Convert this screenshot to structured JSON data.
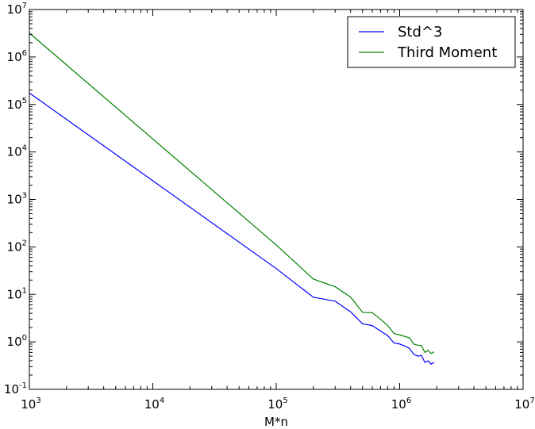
{
  "chart_data": {
    "type": "line",
    "title": "",
    "xlabel": "M*n",
    "ylabel": "",
    "xscale": "log",
    "yscale": "log",
    "xlim": [
      1000,
      10000000
    ],
    "ylim": [
      0.1,
      10000000
    ],
    "grid": false,
    "legend_placement": "top-right",
    "x_ticks": [
      {
        "base": "10",
        "exp": "3",
        "value": 1000
      },
      {
        "base": "10",
        "exp": "4",
        "value": 10000
      },
      {
        "base": "10",
        "exp": "5",
        "value": 100000
      },
      {
        "base": "10",
        "exp": "6",
        "value": 1000000
      },
      {
        "base": "10",
        "exp": "7",
        "value": 10000000
      }
    ],
    "y_ticks": [
      {
        "base": "10",
        "exp": "-1",
        "value": 0.1
      },
      {
        "base": "10",
        "exp": "0",
        "value": 1
      },
      {
        "base": "10",
        "exp": "1",
        "value": 10
      },
      {
        "base": "10",
        "exp": "2",
        "value": 100
      },
      {
        "base": "10",
        "exp": "3",
        "value": 1000
      },
      {
        "base": "10",
        "exp": "4",
        "value": 10000
      },
      {
        "base": "10",
        "exp": "5",
        "value": 100000
      },
      {
        "base": "10",
        "exp": "6",
        "value": 1000000
      },
      {
        "base": "10",
        "exp": "7",
        "value": 10000000
      }
    ],
    "series": [
      {
        "name": "Std^3",
        "color": "#0000ff",
        "x": [
          1000,
          100000,
          200000,
          300000,
          400000,
          500000,
          600000,
          700000,
          800000,
          900000,
          1000000,
          1100000,
          1200000,
          1300000,
          1400000,
          1500000,
          1600000,
          1700000,
          1800000,
          1900000
        ],
        "y": [
          175000,
          35,
          8.7,
          7.2,
          4.3,
          2.4,
          2.2,
          1.7,
          1.35,
          0.95,
          0.9,
          0.82,
          0.73,
          0.55,
          0.5,
          0.52,
          0.37,
          0.4,
          0.34,
          0.37
        ]
      },
      {
        "name": "Third Moment",
        "color": "#008000",
        "x": [
          1000,
          100000,
          200000,
          300000,
          400000,
          500000,
          600000,
          700000,
          800000,
          900000,
          1000000,
          1100000,
          1200000,
          1300000,
          1400000,
          1500000,
          1600000,
          1700000,
          1800000,
          1900000
        ],
        "y": [
          3200000,
          110,
          21,
          14.5,
          8.8,
          4.2,
          4.1,
          3.0,
          2.2,
          1.5,
          1.4,
          1.3,
          1.22,
          0.9,
          0.85,
          0.84,
          0.6,
          0.66,
          0.57,
          0.62
        ]
      }
    ]
  }
}
